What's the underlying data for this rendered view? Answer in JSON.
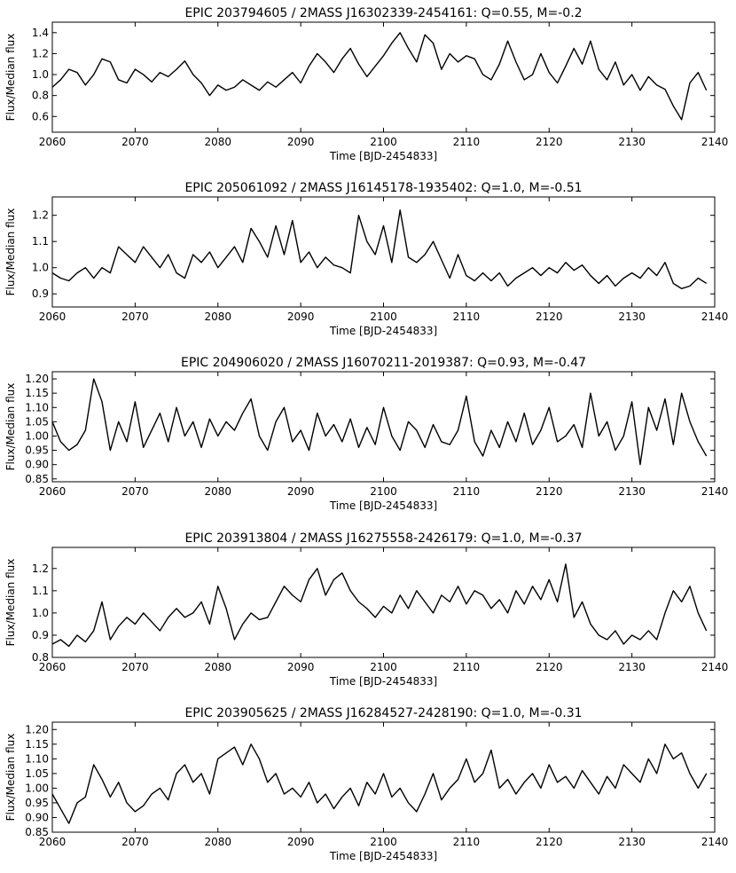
{
  "chart_data": [
    {
      "type": "line",
      "title": "EPIC 203794605 / 2MASS J16302339-2454161: Q=0.55, M=-0.2",
      "xlabel": "Time [BJD-2454833]",
      "ylabel": "Flux/Median flux",
      "xlim": [
        2060,
        2140
      ],
      "ylim": [
        0.45,
        1.5
      ],
      "xticks": [
        2060,
        2070,
        2080,
        2090,
        2100,
        2110,
        2120,
        2130,
        2140
      ],
      "yticks": [
        "0.6",
        "0.8",
        "1.0",
        "1.2",
        "1.4"
      ],
      "grid": false,
      "series": [
        {
          "x": [
            2060,
            2061,
            2062,
            2063,
            2064,
            2065,
            2066,
            2067,
            2068,
            2069,
            2070,
            2071,
            2072,
            2073,
            2074,
            2075,
            2076,
            2077,
            2078,
            2079,
            2080,
            2081,
            2082,
            2083,
            2084,
            2085,
            2086,
            2087,
            2088,
            2089,
            2090,
            2091,
            2092,
            2093,
            2094,
            2095,
            2096,
            2097,
            2098,
            2099,
            2100,
            2101,
            2102,
            2103,
            2104,
            2105,
            2106,
            2107,
            2108,
            2109,
            2110,
            2111,
            2112,
            2113,
            2114,
            2115,
            2116,
            2117,
            2118,
            2119,
            2120,
            2121,
            2122,
            2123,
            2124,
            2125,
            2126,
            2127,
            2128,
            2129,
            2130,
            2131,
            2132,
            2133,
            2134,
            2135,
            2136,
            2137,
            2138,
            2139
          ],
          "y": [
            0.88,
            0.95,
            1.05,
            1.02,
            0.9,
            1.0,
            1.15,
            1.12,
            0.95,
            0.92,
            1.05,
            1.0,
            0.93,
            1.02,
            0.98,
            1.05,
            1.13,
            1.0,
            0.92,
            0.8,
            0.9,
            0.85,
            0.88,
            0.95,
            0.9,
            0.85,
            0.93,
            0.88,
            0.95,
            1.02,
            0.92,
            1.08,
            1.2,
            1.12,
            1.02,
            1.15,
            1.25,
            1.1,
            0.98,
            1.08,
            1.18,
            1.3,
            1.4,
            1.25,
            1.12,
            1.38,
            1.3,
            1.05,
            1.2,
            1.12,
            1.18,
            1.15,
            1.0,
            0.95,
            1.1,
            1.32,
            1.12,
            0.95,
            1.0,
            1.2,
            1.02,
            0.92,
            1.08,
            1.25,
            1.1,
            1.32,
            1.05,
            0.95,
            1.12,
            0.9,
            1.0,
            0.85,
            0.98,
            0.9,
            0.86,
            0.7,
            0.57,
            0.92,
            1.02,
            0.85
          ]
        }
      ]
    },
    {
      "type": "line",
      "title": "EPIC 205061092 / 2MASS J16145178-1935402: Q=1.0, M=-0.51",
      "xlabel": "Time [BJD-2454833]",
      "ylabel": "Flux/Median flux",
      "xlim": [
        2060,
        2140
      ],
      "ylim": [
        0.85,
        1.27
      ],
      "xticks": [
        2060,
        2070,
        2080,
        2090,
        2100,
        2110,
        2120,
        2130,
        2140
      ],
      "yticks": [
        "0.9",
        "1.0",
        "1.1",
        "1.2"
      ],
      "grid": false,
      "series": [
        {
          "x": [
            2060,
            2061,
            2062,
            2063,
            2064,
            2065,
            2066,
            2067,
            2068,
            2069,
            2070,
            2071,
            2072,
            2073,
            2074,
            2075,
            2076,
            2077,
            2078,
            2079,
            2080,
            2081,
            2082,
            2083,
            2084,
            2085,
            2086,
            2087,
            2088,
            2089,
            2090,
            2091,
            2092,
            2093,
            2094,
            2095,
            2096,
            2097,
            2098,
            2099,
            2100,
            2101,
            2102,
            2103,
            2104,
            2105,
            2106,
            2107,
            2108,
            2109,
            2110,
            2111,
            2112,
            2113,
            2114,
            2115,
            2116,
            2117,
            2118,
            2119,
            2120,
            2121,
            2122,
            2123,
            2124,
            2125,
            2126,
            2127,
            2128,
            2129,
            2130,
            2131,
            2132,
            2133,
            2134,
            2135,
            2136,
            2137,
            2138,
            2139
          ],
          "y": [
            0.98,
            0.96,
            0.95,
            0.98,
            1.0,
            0.96,
            1.0,
            0.98,
            1.08,
            1.05,
            1.02,
            1.08,
            1.04,
            1.0,
            1.05,
            0.98,
            0.96,
            1.05,
            1.02,
            1.06,
            1.0,
            1.04,
            1.08,
            1.02,
            1.15,
            1.1,
            1.04,
            1.16,
            1.05,
            1.18,
            1.02,
            1.06,
            1.0,
            1.04,
            1.01,
            1.0,
            0.98,
            1.2,
            1.1,
            1.05,
            1.16,
            1.02,
            1.22,
            1.04,
            1.02,
            1.05,
            1.1,
            1.03,
            0.96,
            1.05,
            0.97,
            0.95,
            0.98,
            0.95,
            0.98,
            0.93,
            0.96,
            0.98,
            1.0,
            0.97,
            1.0,
            0.98,
            1.02,
            0.99,
            1.01,
            0.97,
            0.94,
            0.97,
            0.93,
            0.96,
            0.98,
            0.96,
            1.0,
            0.97,
            1.02,
            0.94,
            0.92,
            0.93,
            0.96,
            0.94
          ]
        }
      ]
    },
    {
      "type": "line",
      "title": "EPIC 204906020 / 2MASS J16070211-2019387: Q=0.93, M=-0.47",
      "xlabel": "Time [BJD-2454833]",
      "ylabel": "Flux/Median flux",
      "xlim": [
        2060,
        2140
      ],
      "ylim": [
        0.84,
        1.225
      ],
      "xticks": [
        2060,
        2070,
        2080,
        2090,
        2100,
        2110,
        2120,
        2130,
        2140
      ],
      "yticks": [
        "0.85",
        "0.90",
        "0.95",
        "1.00",
        "1.05",
        "1.10",
        "1.15",
        "1.20"
      ],
      "grid": false,
      "series": [
        {
          "x": [
            2060,
            2061,
            2062,
            2063,
            2064,
            2065,
            2066,
            2067,
            2068,
            2069,
            2070,
            2071,
            2072,
            2073,
            2074,
            2075,
            2076,
            2077,
            2078,
            2079,
            2080,
            2081,
            2082,
            2083,
            2084,
            2085,
            2086,
            2087,
            2088,
            2089,
            2090,
            2091,
            2092,
            2093,
            2094,
            2095,
            2096,
            2097,
            2098,
            2099,
            2100,
            2101,
            2102,
            2103,
            2104,
            2105,
            2106,
            2107,
            2108,
            2109,
            2110,
            2111,
            2112,
            2113,
            2114,
            2115,
            2116,
            2117,
            2118,
            2119,
            2120,
            2121,
            2122,
            2123,
            2124,
            2125,
            2126,
            2127,
            2128,
            2129,
            2130,
            2131,
            2132,
            2133,
            2134,
            2135,
            2136,
            2137,
            2138,
            2139
          ],
          "y": [
            1.05,
            0.98,
            0.95,
            0.97,
            1.02,
            1.2,
            1.12,
            0.95,
            1.05,
            0.98,
            1.12,
            0.96,
            1.02,
            1.08,
            0.98,
            1.1,
            1.0,
            1.05,
            0.96,
            1.06,
            1.0,
            1.05,
            1.02,
            1.08,
            1.13,
            1.0,
            0.95,
            1.05,
            1.1,
            0.98,
            1.02,
            0.95,
            1.08,
            1.0,
            1.04,
            0.98,
            1.06,
            0.96,
            1.03,
            0.97,
            1.1,
            1.0,
            0.95,
            1.05,
            1.02,
            0.96,
            1.04,
            0.98,
            0.97,
            1.02,
            1.14,
            0.98,
            0.93,
            1.02,
            0.96,
            1.05,
            0.98,
            1.08,
            0.97,
            1.02,
            1.1,
            0.98,
            1.0,
            1.04,
            0.96,
            1.15,
            1.0,
            1.05,
            0.95,
            1.0,
            1.12,
            0.9,
            1.1,
            1.02,
            1.13,
            0.97,
            1.15,
            1.05,
            0.98,
            0.93
          ]
        }
      ]
    },
    {
      "type": "line",
      "title": "EPIC 203913804 / 2MASS J16275558-2426179: Q=1.0, M=-0.37",
      "xlabel": "Time [BJD-2454833]",
      "ylabel": "Flux/Median flux",
      "xlim": [
        2060,
        2140
      ],
      "ylim": [
        0.8,
        1.295
      ],
      "xticks": [
        2060,
        2070,
        2080,
        2090,
        2100,
        2110,
        2120,
        2130,
        2140
      ],
      "yticks": [
        "0.8",
        "0.9",
        "1.0",
        "1.1",
        "1.2"
      ],
      "grid": false,
      "series": [
        {
          "x": [
            2060,
            2061,
            2062,
            2063,
            2064,
            2065,
            2066,
            2067,
            2068,
            2069,
            2070,
            2071,
            2072,
            2073,
            2074,
            2075,
            2076,
            2077,
            2078,
            2079,
            2080,
            2081,
            2082,
            2083,
            2084,
            2085,
            2086,
            2087,
            2088,
            2089,
            2090,
            2091,
            2092,
            2093,
            2094,
            2095,
            2096,
            2097,
            2098,
            2099,
            2100,
            2101,
            2102,
            2103,
            2104,
            2105,
            2106,
            2107,
            2108,
            2109,
            2110,
            2111,
            2112,
            2113,
            2114,
            2115,
            2116,
            2117,
            2118,
            2119,
            2120,
            2121,
            2122,
            2123,
            2124,
            2125,
            2126,
            2127,
            2128,
            2129,
            2130,
            2131,
            2132,
            2133,
            2134,
            2135,
            2136,
            2137,
            2138,
            2139
          ],
          "y": [
            0.86,
            0.88,
            0.85,
            0.9,
            0.87,
            0.92,
            1.05,
            0.88,
            0.94,
            0.98,
            0.95,
            1.0,
            0.96,
            0.92,
            0.98,
            1.02,
            0.98,
            1.0,
            1.05,
            0.95,
            1.12,
            1.02,
            0.88,
            0.95,
            1.0,
            0.97,
            0.98,
            1.05,
            1.12,
            1.08,
            1.05,
            1.15,
            1.2,
            1.08,
            1.15,
            1.18,
            1.1,
            1.05,
            1.02,
            0.98,
            1.03,
            1.0,
            1.08,
            1.02,
            1.1,
            1.05,
            1.0,
            1.08,
            1.05,
            1.12,
            1.04,
            1.1,
            1.08,
            1.02,
            1.06,
            1.0,
            1.1,
            1.04,
            1.12,
            1.06,
            1.15,
            1.05,
            1.22,
            0.98,
            1.05,
            0.95,
            0.9,
            0.88,
            0.92,
            0.86,
            0.9,
            0.88,
            0.92,
            0.88,
            1.0,
            1.1,
            1.05,
            1.12,
            1.0,
            0.92
          ]
        }
      ]
    },
    {
      "type": "line",
      "title": "EPIC 203905625 / 2MASS J16284527-2428190: Q=1.0, M=-0.31",
      "xlabel": "Time [BJD-2454833]",
      "ylabel": "Flux/Median flux",
      "xlim": [
        2060,
        2140
      ],
      "ylim": [
        0.85,
        1.225
      ],
      "xticks": [
        2060,
        2070,
        2080,
        2090,
        2100,
        2110,
        2120,
        2130,
        2140
      ],
      "yticks": [
        "0.85",
        "0.90",
        "0.95",
        "1.00",
        "1.05",
        "1.10",
        "1.15",
        "1.20"
      ],
      "grid": false,
      "series": [
        {
          "x": [
            2060,
            2061,
            2062,
            2063,
            2064,
            2065,
            2066,
            2067,
            2068,
            2069,
            2070,
            2071,
            2072,
            2073,
            2074,
            2075,
            2076,
            2077,
            2078,
            2079,
            2080,
            2081,
            2082,
            2083,
            2084,
            2085,
            2086,
            2087,
            2088,
            2089,
            2090,
            2091,
            2092,
            2093,
            2094,
            2095,
            2096,
            2097,
            2098,
            2099,
            2100,
            2101,
            2102,
            2103,
            2104,
            2105,
            2106,
            2107,
            2108,
            2109,
            2110,
            2111,
            2112,
            2113,
            2114,
            2115,
            2116,
            2117,
            2118,
            2119,
            2120,
            2121,
            2122,
            2123,
            2124,
            2125,
            2126,
            2127,
            2128,
            2129,
            2130,
            2131,
            2132,
            2133,
            2134,
            2135,
            2136,
            2137,
            2138,
            2139
          ],
          "y": [
            0.98,
            0.93,
            0.88,
            0.95,
            0.97,
            1.08,
            1.03,
            0.97,
            1.02,
            0.95,
            0.92,
            0.94,
            0.98,
            1.0,
            0.96,
            1.05,
            1.08,
            1.02,
            1.05,
            0.98,
            1.1,
            1.12,
            1.14,
            1.08,
            1.15,
            1.1,
            1.02,
            1.05,
            0.98,
            1.0,
            0.97,
            1.02,
            0.95,
            0.98,
            0.93,
            0.97,
            1.0,
            0.94,
            1.02,
            0.98,
            1.05,
            0.97,
            1.0,
            0.95,
            0.92,
            0.98,
            1.05,
            0.96,
            1.0,
            1.03,
            1.1,
            1.02,
            1.05,
            1.13,
            1.0,
            1.03,
            0.98,
            1.02,
            1.05,
            1.0,
            1.08,
            1.02,
            1.04,
            1.0,
            1.06,
            1.02,
            0.98,
            1.04,
            1.0,
            1.08,
            1.05,
            1.02,
            1.1,
            1.05,
            1.15,
            1.1,
            1.12,
            1.05,
            1.0,
            1.05
          ]
        }
      ]
    }
  ]
}
